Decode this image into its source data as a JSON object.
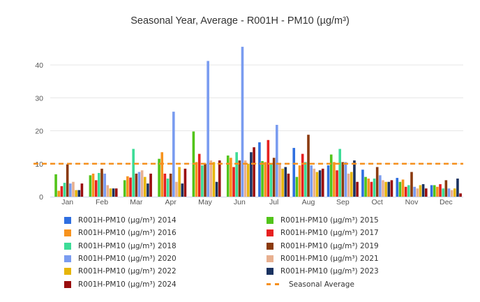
{
  "chart_data": {
    "type": "bar",
    "title": "Seasonal Year, Average - R001H - PM10 (µg/m³)",
    "xlabel": "",
    "ylabel": "",
    "categories": [
      "Jan",
      "Feb",
      "Mar",
      "Apr",
      "May",
      "Jun",
      "Jul",
      "Aug",
      "Sep",
      "Oct",
      "Nov",
      "Dec"
    ],
    "ylim": [
      0,
      47
    ],
    "yticks": [
      0,
      10,
      20,
      30,
      40
    ],
    "grid": true,
    "legend_position": "bottom",
    "series": [
      {
        "name": "R001H-PM10 (µg/m³) 2014",
        "color": "#2f6fe0",
        "values": [
          null,
          null,
          null,
          null,
          null,
          null,
          16.5,
          14.8,
          9.5,
          8.2,
          5.7,
          3.5
        ]
      },
      {
        "name": "R001H-PM10 (µg/m³) 2015",
        "color": "#52c41a",
        "values": [
          6.8,
          6.5,
          5.0,
          11.5,
          19.8,
          12.5,
          10.8,
          6.0,
          12.8,
          6.0,
          4.5,
          3.5
        ]
      },
      {
        "name": "R001H-PM10 (µg/m³) 2016",
        "color": "#f7931e",
        "values": [
          1.8,
          7.0,
          6.2,
          13.5,
          10.5,
          11.8,
          10.5,
          9.5,
          10.5,
          5.5,
          5.2,
          3.0
        ]
      },
      {
        "name": "R001H-PM10 (µg/m³) 2017",
        "color": "#e62020",
        "values": [
          3.2,
          5.0,
          5.8,
          7.0,
          13.0,
          9.0,
          17.2,
          13.0,
          8.0,
          4.5,
          3.0,
          3.8
        ]
      },
      {
        "name": "R001H-PM10 (µg/m³) 2018",
        "color": "#3ddc97",
        "values": [
          4.2,
          7.2,
          14.5,
          5.5,
          9.5,
          13.5,
          10.0,
          10.5,
          14.5,
          5.5,
          3.5,
          2.5
        ]
      },
      {
        "name": "R001H-PM10 (µg/m³) 2019",
        "color": "#8b3a0e",
        "values": [
          9.8,
          8.5,
          7.0,
          7.0,
          10.0,
          11.0,
          11.8,
          18.8,
          10.5,
          9.0,
          7.5,
          5.0
        ]
      },
      {
        "name": "R001H-PM10 (µg/m³) 2020",
        "color": "#7a9cf0",
        "values": [
          4.0,
          7.0,
          7.5,
          25.8,
          41.2,
          45.5,
          21.8,
          9.5,
          10.5,
          6.5,
          3.0,
          2.5
        ]
      },
      {
        "name": "R001H-PM10 (µg/m³) 2021",
        "color": "#e8b090",
        "values": [
          4.5,
          3.5,
          8.0,
          4.5,
          11.0,
          11.0,
          10.0,
          8.5,
          7.0,
          5.0,
          2.5,
          2.0
        ]
      },
      {
        "name": "R001H-PM10 (µg/m³) 2022",
        "color": "#e6b50a",
        "values": [
          2.0,
          2.5,
          6.0,
          9.0,
          10.5,
          10.0,
          8.5,
          7.5,
          7.5,
          4.5,
          3.5,
          2.5
        ]
      },
      {
        "name": "R001H-PM10 (µg/m³) 2023",
        "color": "#1a3260",
        "values": [
          2.0,
          2.5,
          4.0,
          4.0,
          4.5,
          13.5,
          9.0,
          8.0,
          11.0,
          4.5,
          3.8,
          5.5
        ]
      },
      {
        "name": "R001H-PM10 (µg/m³) 2024",
        "color": "#990d0d",
        "values": [
          4.0,
          2.5,
          7.0,
          8.5,
          11.0,
          15.0,
          7.0,
          8.5,
          4.5,
          5.0,
          2.5,
          1.0
        ]
      }
    ],
    "seasonal_average": {
      "name": "Seasonal Average",
      "color": "#f5901e",
      "value": 10
    }
  }
}
